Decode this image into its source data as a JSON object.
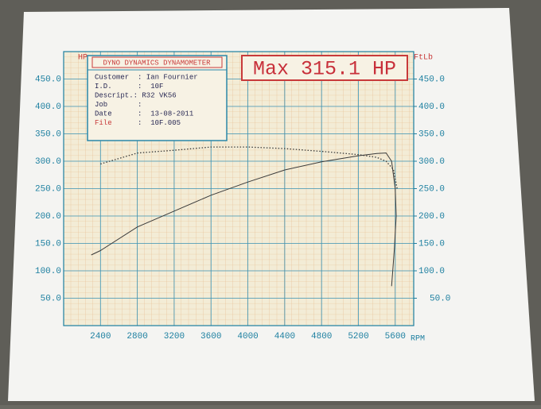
{
  "chart_data": {
    "type": "line",
    "annotation": "Max 315.1 HP",
    "info_title": "DYNO DYNAMICS DYNAMOMETER",
    "info_rows": [
      "Customer  : Ian Fournier",
      "I.D.      :  10F",
      "Descript.: R32 VK56",
      "Job       :",
      "Date      :  13-08-2011"
    ],
    "info_file_label": "File",
    "info_file_value": ":  10F.005",
    "xlabel": "RPM",
    "ylabel": "HP",
    "y2label": "FtLb",
    "xlim": [
      2000,
      5800
    ],
    "xticks": [
      2400,
      2800,
      3200,
      3600,
      4000,
      4400,
      4800,
      5200,
      5600
    ],
    "ylim": [
      0,
      500
    ],
    "yticks": [
      {
        "value": 50,
        "label": "50.0"
      },
      {
        "value": 100,
        "label": "100.0"
      },
      {
        "value": 150,
        "label": "150.0"
      },
      {
        "value": 200,
        "label": "200.0"
      },
      {
        "value": 250,
        "label": "250.0"
      },
      {
        "value": 300,
        "label": "300.0"
      },
      {
        "value": 350,
        "label": "350.0"
      },
      {
        "value": 400,
        "label": "400.0"
      },
      {
        "value": 450,
        "label": "450.0"
      }
    ],
    "y2lim": [
      0,
      500
    ],
    "y2ticks": [
      {
        "value": 50,
        "label": "50.0"
      },
      {
        "value": 100,
        "label": "100.0"
      },
      {
        "value": 150,
        "label": "150.0"
      },
      {
        "value": 200,
        "label": "200.0"
      },
      {
        "value": 250,
        "label": "250.0"
      },
      {
        "value": 300,
        "label": "300.0"
      },
      {
        "value": 350,
        "label": "350.0"
      },
      {
        "value": 400,
        "label": "400.0"
      },
      {
        "value": 450,
        "label": "450.0"
      }
    ],
    "grid": true,
    "series": [
      {
        "color": "#3a3a3a",
        "style": "solid",
        "x": [
          2300,
          2400,
          2800,
          3200,
          3600,
          4000,
          4400,
          4800,
          5200,
          5400,
          5500,
          5560,
          5600,
          5610,
          5590,
          5570,
          5560
        ],
        "values": [
          129,
          137,
          180,
          209,
          238,
          262,
          284,
          299,
          310,
          314,
          315.1,
          300,
          250,
          200,
          140,
          95,
          72
        ]
      },
      {
        "color": "#3a3a3a",
        "style": "dotted",
        "axis": "y2",
        "x": [
          2400,
          2500,
          2800,
          3200,
          3600,
          4000,
          4400,
          4800,
          5200,
          5400,
          5500,
          5580,
          5620
        ],
        "values": [
          295,
          300,
          315,
          320,
          326,
          326,
          323,
          318,
          312,
          307,
          300,
          285,
          250
        ]
      }
    ]
  }
}
